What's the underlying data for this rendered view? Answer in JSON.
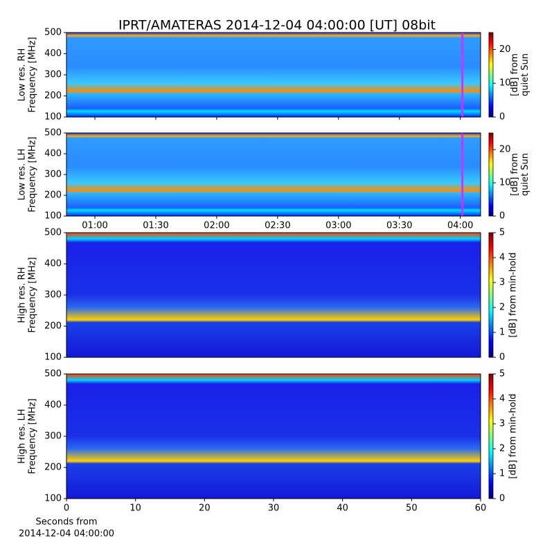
{
  "title": "IPRT/AMATERAS 2014-12-04 04:00:00 [UT]   08bit",
  "chart_data": [
    {
      "type": "heatmap",
      "ylabel": [
        "Low res. RH",
        "Frequency [MHz]"
      ],
      "ylim": [
        100,
        500
      ],
      "yticks": [
        100,
        200,
        300,
        400,
        500
      ],
      "xlim": [
        46,
        250
      ],
      "xticks": [
        60,
        90,
        120,
        150,
        180,
        210,
        240
      ],
      "vline": {
        "x": 241,
        "color": "#cc33ff"
      },
      "colorbar": {
        "label": [
          "[dB] from",
          "quiet Sun"
        ],
        "lim": [
          0,
          25
        ],
        "ticks": [
          0,
          10,
          20
        ]
      }
    },
    {
      "type": "heatmap",
      "ylabel": [
        "Low res. LH",
        "Frequency [MHz]"
      ],
      "ylim": [
        100,
        500
      ],
      "yticks": [
        100,
        200,
        300,
        400,
        500
      ],
      "xlim": [
        46,
        250
      ],
      "xticks": [
        {
          "value": 60,
          "label": "01:00"
        },
        {
          "value": 90,
          "label": "01:30"
        },
        {
          "value": 120,
          "label": "02:00"
        },
        {
          "value": 150,
          "label": "02:30"
        },
        {
          "value": 180,
          "label": "03:00"
        },
        {
          "value": 210,
          "label": "03:30"
        },
        {
          "value": 240,
          "label": "04:00"
        }
      ],
      "vline": {
        "x": 241,
        "color": "#cc33ff"
      },
      "colorbar": {
        "label": [
          "[dB] from",
          "quiet Sun"
        ],
        "lim": [
          0,
          25
        ],
        "ticks": [
          0,
          10,
          20
        ]
      }
    },
    {
      "type": "heatmap",
      "ylabel": [
        "High res. RH",
        "Frequency [MHz]"
      ],
      "ylim": [
        100,
        500
      ],
      "yticks": [
        100,
        200,
        300,
        400,
        500
      ],
      "xlim": [
        0,
        60
      ],
      "colorbar": {
        "label": [
          "[dB] from min-hold"
        ],
        "lim": [
          0,
          5
        ],
        "ticks": [
          0,
          1,
          2,
          3,
          4,
          5
        ]
      }
    },
    {
      "type": "heatmap",
      "ylabel": [
        "High res. LH",
        "Frequency [MHz]"
      ],
      "ylim": [
        100,
        500
      ],
      "yticks": [
        100,
        200,
        300,
        400,
        500
      ],
      "xlim": [
        0,
        60
      ],
      "xticks": [
        0,
        10,
        20,
        30,
        40,
        50,
        60
      ],
      "xlabel": [
        "Seconds from",
        "2014-12-04 04:00:00"
      ],
      "colorbar": {
        "label": [
          "[dB] from min-hold"
        ],
        "lim": [
          0,
          5
        ],
        "ticks": [
          0,
          1,
          2,
          3,
          4,
          5
        ]
      }
    }
  ]
}
